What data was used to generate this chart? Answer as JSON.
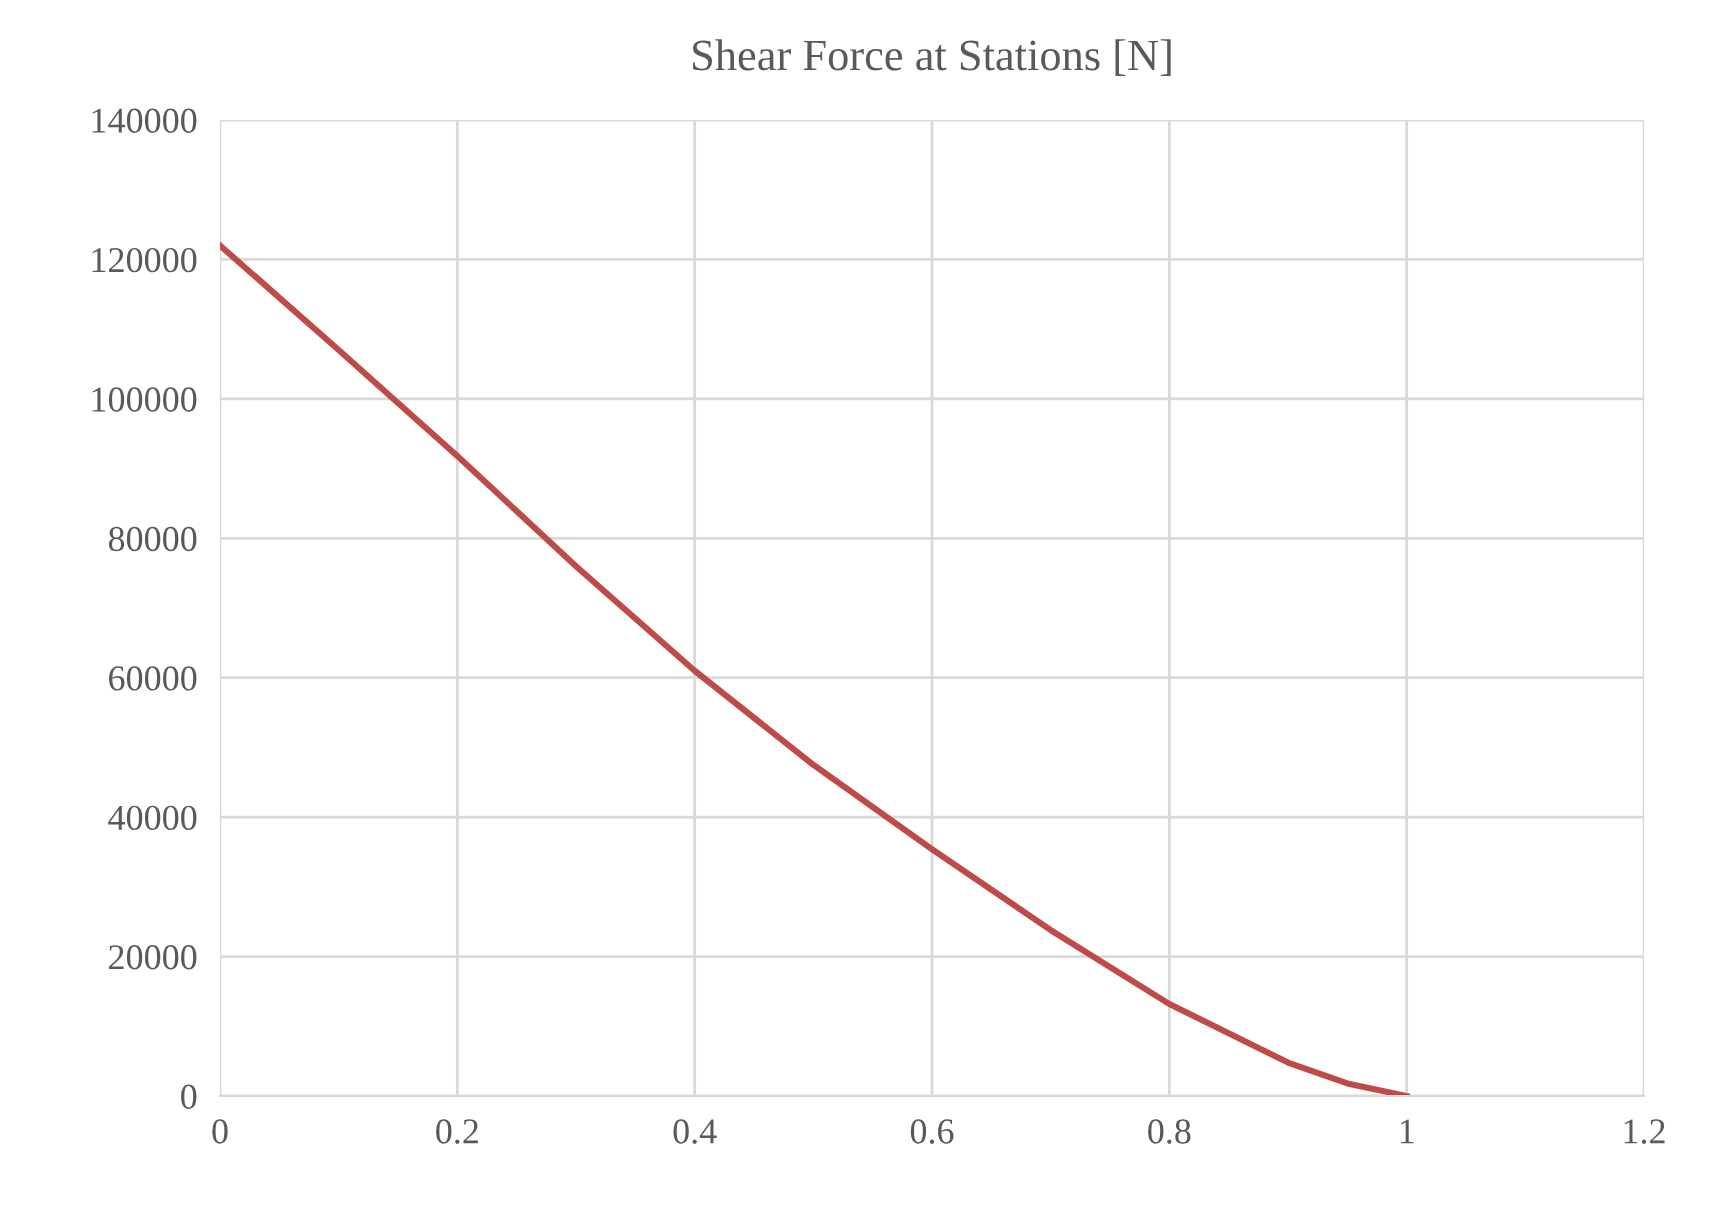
{
  "chart_data": {
    "type": "line",
    "title": "Shear Force at Stations [N]",
    "x": [
      0,
      0.1,
      0.2,
      0.3,
      0.4,
      0.5,
      0.6,
      0.7,
      0.8,
      0.9,
      0.95,
      1.0
    ],
    "series": [
      {
        "color": "#be4b48",
        "values": [
          122000,
          107000,
          91800,
          76000,
          61000,
          47500,
          35400,
          23800,
          13200,
          4800,
          1800,
          0
        ]
      }
    ],
    "xlim": [
      0,
      1.2
    ],
    "xticks": [
      0,
      0.2,
      0.4,
      0.6,
      0.8,
      1,
      1.2
    ],
    "ylim": [
      0,
      140000
    ],
    "yticks": [
      0,
      20000,
      40000,
      60000,
      80000,
      100000,
      120000,
      140000
    ],
    "grid": true,
    "marker": "none",
    "line_style": "solid"
  }
}
